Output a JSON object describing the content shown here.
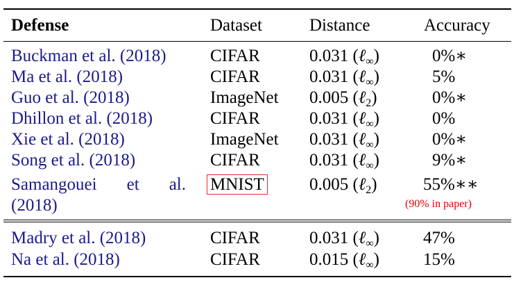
{
  "headers": {
    "defense": "Defense",
    "dataset": "Dataset",
    "distance": "Distance",
    "accuracy": "Accuracy"
  },
  "rows_group1": [
    {
      "defense": "Buckman et al. (2018)",
      "dataset": "CIFAR",
      "distance_val": "0.031 (",
      "norm": "ℓ",
      "norm_sub": "∞",
      "accuracy": "0%∗"
    },
    {
      "defense": "Ma et al. (2018)",
      "dataset": "CIFAR",
      "distance_val": "0.031 (",
      "norm": "ℓ",
      "norm_sub": "∞",
      "accuracy": "5%"
    },
    {
      "defense": "Guo et al. (2018)",
      "dataset": "ImageNet",
      "distance_val": "0.005 (",
      "norm": "ℓ",
      "norm_sub": "2",
      "accuracy": "0%∗"
    },
    {
      "defense": "Dhillon et al. (2018)",
      "dataset": "CIFAR",
      "distance_val": "0.031 (",
      "norm": "ℓ",
      "norm_sub": "∞",
      "accuracy": "0%"
    },
    {
      "defense": "Xie et al. (2018)",
      "dataset": "ImageNet",
      "distance_val": "0.031 (",
      "norm": "ℓ",
      "norm_sub": "∞",
      "accuracy": "0%∗"
    },
    {
      "defense": "Song et al. (2018)",
      "dataset": "CIFAR",
      "distance_val": "0.031 (",
      "norm": "ℓ",
      "norm_sub": "∞",
      "accuracy": "9%∗"
    }
  ],
  "samangouei": {
    "defense_words": [
      "Samangouei",
      "et",
      "al."
    ],
    "defense_line2": "(2018)",
    "dataset": "MNIST",
    "distance_val": "0.005 (",
    "norm": "ℓ",
    "norm_sub": "2",
    "accuracy": "55%∗∗",
    "note": "(90% in paper)"
  },
  "rows_group2": [
    {
      "defense": "Madry et al. (2018)",
      "dataset": "CIFAR",
      "distance_val": "0.031 (",
      "norm": "ℓ",
      "norm_sub": "∞",
      "accuracy": "47%"
    },
    {
      "defense": "Na et al. (2018)",
      "dataset": "CIFAR",
      "distance_val": "0.015 (",
      "norm": "ℓ",
      "norm_sub": "∞",
      "accuracy": "15%"
    }
  ],
  "colors": {
    "citation": "#1a1a8c",
    "highlight_box": "#e32d2d",
    "note": "#e00000"
  }
}
